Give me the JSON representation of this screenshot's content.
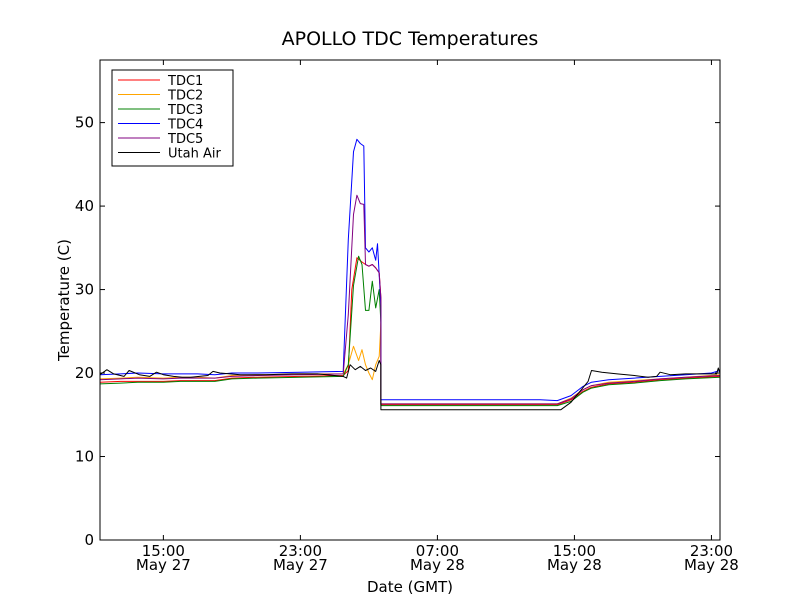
{
  "chart_data": {
    "type": "line",
    "title": "APOLLO TDC Temperatures",
    "xlabel": "Date (GMT)",
    "ylabel": "Temperature (C)",
    "ylim": [
      0,
      57.5
    ],
    "xlim": [
      11.3,
      47.5
    ],
    "x_unit": "hours since May 27 00:00 GMT",
    "yticks": [
      0,
      10,
      20,
      30,
      40,
      50
    ],
    "xticks": [
      {
        "x": 15,
        "line1": "15:00",
        "line2": "May 27"
      },
      {
        "x": 23,
        "line1": "23:00",
        "line2": "May 27"
      },
      {
        "x": 31,
        "line1": "07:00",
        "line2": "May 28"
      },
      {
        "x": 39,
        "line1": "15:00",
        "line2": "May 28"
      },
      {
        "x": 47,
        "line1": "23:00",
        "line2": "May 28"
      }
    ],
    "grid": false,
    "legend_position": "top-left",
    "series": [
      {
        "name": "TDC1",
        "color": "#ff0000",
        "points": [
          [
            11.3,
            18.9
          ],
          [
            12.5,
            19.0
          ],
          [
            13.5,
            19.0
          ],
          [
            15.0,
            19.0
          ],
          [
            16.0,
            19.1
          ],
          [
            17.0,
            19.1
          ],
          [
            18.0,
            19.1
          ],
          [
            19.0,
            19.4
          ],
          [
            20.5,
            19.5
          ],
          [
            23.0,
            19.6
          ],
          [
            25.5,
            19.7
          ],
          [
            25.8,
            20.3
          ],
          [
            26.0,
            30.0
          ],
          [
            26.3,
            33.8
          ],
          [
            26.6,
            33.3
          ],
          [
            26.8,
            33.0
          ],
          [
            27.0,
            32.8
          ],
          [
            27.2,
            33.0
          ],
          [
            27.4,
            32.6
          ],
          [
            27.6,
            32.0
          ],
          [
            27.7,
            29.0
          ],
          [
            27.7,
            16.2
          ],
          [
            29.0,
            16.2
          ],
          [
            33.0,
            16.2
          ],
          [
            37.0,
            16.2
          ],
          [
            38.0,
            16.2
          ],
          [
            38.8,
            16.8
          ],
          [
            39.5,
            17.8
          ],
          [
            40.0,
            18.3
          ],
          [
            41.0,
            18.7
          ],
          [
            42.5,
            18.9
          ],
          [
            44.0,
            19.2
          ],
          [
            45.5,
            19.4
          ],
          [
            47.5,
            19.6
          ]
        ]
      },
      {
        "name": "TDC2",
        "color": "#ffa500",
        "points": [
          [
            11.3,
            19.3
          ],
          [
            12.5,
            19.4
          ],
          [
            13.5,
            19.5
          ],
          [
            15.0,
            19.4
          ],
          [
            16.0,
            19.5
          ],
          [
            17.0,
            19.5
          ],
          [
            18.0,
            19.4
          ],
          [
            19.0,
            19.7
          ],
          [
            20.5,
            19.8
          ],
          [
            23.0,
            19.9
          ],
          [
            25.5,
            19.9
          ],
          [
            25.8,
            21.0
          ],
          [
            26.1,
            23.2
          ],
          [
            26.4,
            21.5
          ],
          [
            26.6,
            22.8
          ],
          [
            26.8,
            21.0
          ],
          [
            27.0,
            20.0
          ],
          [
            27.2,
            19.2
          ],
          [
            27.4,
            21.0
          ],
          [
            27.6,
            22.0
          ],
          [
            27.7,
            26.0
          ],
          [
            27.7,
            16.3
          ],
          [
            29.0,
            16.3
          ],
          [
            33.0,
            16.3
          ],
          [
            37.0,
            16.3
          ],
          [
            38.0,
            16.3
          ],
          [
            38.8,
            17.0
          ],
          [
            39.5,
            18.0
          ],
          [
            40.0,
            18.5
          ],
          [
            41.0,
            18.9
          ],
          [
            42.5,
            19.1
          ],
          [
            44.0,
            19.3
          ],
          [
            45.5,
            19.5
          ],
          [
            47.5,
            19.8
          ]
        ]
      },
      {
        "name": "TDC3",
        "color": "#008000",
        "points": [
          [
            11.3,
            18.7
          ],
          [
            12.5,
            18.8
          ],
          [
            13.5,
            18.9
          ],
          [
            15.0,
            18.9
          ],
          [
            16.0,
            19.0
          ],
          [
            17.0,
            19.0
          ],
          [
            18.0,
            19.0
          ],
          [
            19.0,
            19.3
          ],
          [
            20.5,
            19.4
          ],
          [
            23.0,
            19.5
          ],
          [
            25.5,
            19.6
          ],
          [
            25.8,
            21.0
          ],
          [
            26.1,
            30.5
          ],
          [
            26.4,
            34.0
          ],
          [
            26.6,
            33.0
          ],
          [
            26.8,
            27.5
          ],
          [
            27.0,
            27.5
          ],
          [
            27.2,
            31.0
          ],
          [
            27.4,
            27.8
          ],
          [
            27.6,
            30.0
          ],
          [
            27.7,
            26.0
          ],
          [
            27.7,
            16.1
          ],
          [
            29.0,
            16.1
          ],
          [
            33.0,
            16.1
          ],
          [
            37.0,
            16.1
          ],
          [
            38.0,
            16.1
          ],
          [
            38.8,
            16.6
          ],
          [
            39.5,
            17.7
          ],
          [
            40.0,
            18.2
          ],
          [
            41.0,
            18.6
          ],
          [
            42.5,
            18.8
          ],
          [
            44.0,
            19.1
          ],
          [
            45.5,
            19.3
          ],
          [
            47.5,
            19.5
          ]
        ]
      },
      {
        "name": "TDC4",
        "color": "#0000ff",
        "points": [
          [
            11.3,
            19.8
          ],
          [
            12.5,
            19.9
          ],
          [
            13.5,
            20.0
          ],
          [
            15.0,
            19.9
          ],
          [
            16.0,
            19.9
          ],
          [
            17.0,
            19.9
          ],
          [
            18.0,
            19.8
          ],
          [
            19.0,
            20.0
          ],
          [
            20.5,
            20.0
          ],
          [
            23.0,
            20.1
          ],
          [
            25.5,
            20.2
          ],
          [
            25.8,
            36.0
          ],
          [
            26.1,
            46.5
          ],
          [
            26.3,
            48.0
          ],
          [
            26.5,
            47.5
          ],
          [
            26.7,
            47.2
          ],
          [
            26.8,
            35.0
          ],
          [
            27.0,
            34.5
          ],
          [
            27.2,
            35.0
          ],
          [
            27.4,
            33.5
          ],
          [
            27.5,
            35.5
          ],
          [
            27.7,
            28.0
          ],
          [
            27.7,
            16.8
          ],
          [
            29.0,
            16.8
          ],
          [
            33.0,
            16.8
          ],
          [
            37.0,
            16.8
          ],
          [
            38.0,
            16.7
          ],
          [
            38.8,
            17.3
          ],
          [
            39.5,
            18.4
          ],
          [
            40.0,
            18.9
          ],
          [
            41.0,
            19.2
          ],
          [
            42.5,
            19.4
          ],
          [
            44.0,
            19.6
          ],
          [
            45.5,
            19.8
          ],
          [
            47.0,
            20.0
          ],
          [
            47.5,
            20.3
          ]
        ]
      },
      {
        "name": "TDC5",
        "color": "#800080",
        "points": [
          [
            11.3,
            19.2
          ],
          [
            12.5,
            19.3
          ],
          [
            13.5,
            19.4
          ],
          [
            15.0,
            19.3
          ],
          [
            16.0,
            19.4
          ],
          [
            17.0,
            19.4
          ],
          [
            18.0,
            19.4
          ],
          [
            19.0,
            19.6
          ],
          [
            20.5,
            19.7
          ],
          [
            23.0,
            19.8
          ],
          [
            25.5,
            19.9
          ],
          [
            25.8,
            27.0
          ],
          [
            26.1,
            39.0
          ],
          [
            26.3,
            41.3
          ],
          [
            26.5,
            40.3
          ],
          [
            26.7,
            40.2
          ],
          [
            26.8,
            33.0
          ],
          [
            27.0,
            32.8
          ],
          [
            27.2,
            33.0
          ],
          [
            27.4,
            32.6
          ],
          [
            27.6,
            32.0
          ],
          [
            27.7,
            29.0
          ],
          [
            27.7,
            16.3
          ],
          [
            29.0,
            16.3
          ],
          [
            33.0,
            16.3
          ],
          [
            37.0,
            16.3
          ],
          [
            38.0,
            16.3
          ],
          [
            38.8,
            16.9
          ],
          [
            39.5,
            18.0
          ],
          [
            40.0,
            18.5
          ],
          [
            41.0,
            18.8
          ],
          [
            42.5,
            19.0
          ],
          [
            44.0,
            19.3
          ],
          [
            45.5,
            19.5
          ],
          [
            47.5,
            19.7
          ]
        ]
      },
      {
        "name": "Utah Air",
        "color": "#000000",
        "points": [
          [
            11.3,
            19.8
          ],
          [
            11.7,
            20.4
          ],
          [
            12.1,
            19.9
          ],
          [
            12.7,
            19.6
          ],
          [
            13.0,
            20.3
          ],
          [
            13.6,
            19.8
          ],
          [
            14.2,
            19.6
          ],
          [
            14.6,
            20.1
          ],
          [
            15.0,
            19.8
          ],
          [
            15.6,
            19.6
          ],
          [
            16.1,
            19.5
          ],
          [
            16.6,
            19.5
          ],
          [
            17.1,
            19.6
          ],
          [
            17.6,
            19.7
          ],
          [
            17.9,
            20.2
          ],
          [
            18.3,
            20.0
          ],
          [
            19.5,
            19.8
          ],
          [
            21.0,
            19.8
          ],
          [
            22.5,
            19.9
          ],
          [
            24.0,
            19.9
          ],
          [
            25.5,
            19.6
          ],
          [
            25.7,
            19.4
          ],
          [
            25.9,
            21.0
          ],
          [
            26.2,
            20.4
          ],
          [
            26.5,
            20.8
          ],
          [
            26.8,
            20.3
          ],
          [
            27.1,
            20.6
          ],
          [
            27.4,
            20.2
          ],
          [
            27.6,
            21.5
          ],
          [
            27.7,
            21.0
          ],
          [
            27.7,
            15.6
          ],
          [
            29.0,
            15.6
          ],
          [
            33.0,
            15.6
          ],
          [
            37.0,
            15.6
          ],
          [
            38.2,
            15.6
          ],
          [
            38.8,
            16.5
          ],
          [
            39.4,
            18.0
          ],
          [
            39.8,
            19.0
          ],
          [
            40.0,
            20.3
          ],
          [
            40.6,
            20.1
          ],
          [
            41.5,
            19.9
          ],
          [
            42.5,
            19.7
          ],
          [
            43.3,
            19.5
          ],
          [
            43.8,
            19.6
          ],
          [
            44.0,
            20.1
          ],
          [
            44.6,
            19.8
          ],
          [
            45.5,
            19.9
          ],
          [
            46.5,
            19.9
          ],
          [
            47.3,
            19.9
          ],
          [
            47.4,
            20.6
          ],
          [
            47.5,
            20.0
          ]
        ]
      }
    ]
  }
}
